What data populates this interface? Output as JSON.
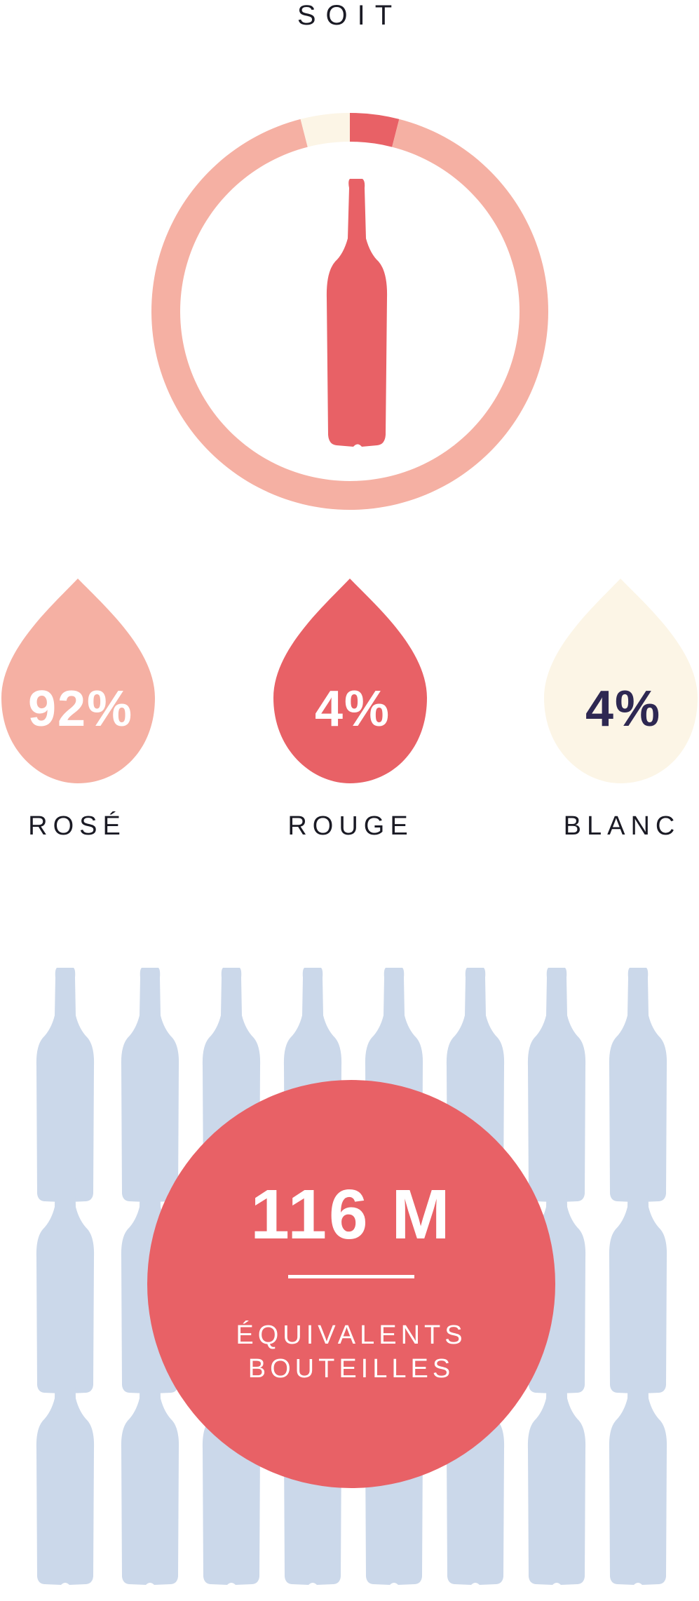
{
  "heading": "SOIT",
  "colors": {
    "rose": "#f5b0a3",
    "rouge": "#e86166",
    "blanc": "#fcf5e6",
    "bottle_bg": "#cbd8ea",
    "dark_text": "#2e2852",
    "label_text": "#1a1a24"
  },
  "icons": {
    "center_bottle": "wine-bottle-icon",
    "background_bottles": "wine-bottle-icon"
  },
  "chart_data": {
    "type": "pie",
    "categories": [
      "ROSÉ",
      "ROUGE",
      "BLANC"
    ],
    "values": [
      92,
      4,
      4
    ],
    "unit": "%",
    "labels": [
      "92%",
      "4%",
      "4%"
    ]
  },
  "drops": [
    {
      "value": "92%",
      "label": "ROSÉ"
    },
    {
      "value": "4%",
      "label": "ROUGE"
    },
    {
      "value": "4%",
      "label": "BLANC"
    }
  ],
  "total": {
    "value": "116 M",
    "caption_line1": "ÉQUIVALENTS",
    "caption_line2": "BOUTEILLES"
  }
}
